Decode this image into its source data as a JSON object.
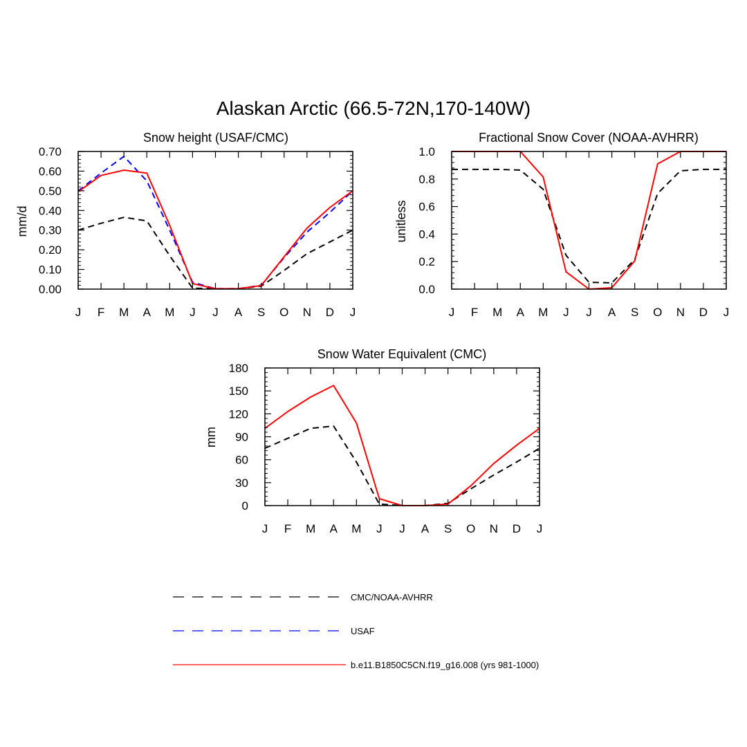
{
  "figure_title": "Alaskan Arctic (66.5-72N,170-140W)",
  "colors": {
    "obs": "#000000",
    "usaf": "#0000ff",
    "model": "#ff0000"
  },
  "legend": [
    {
      "key": "obs",
      "label": "CMC/NOAA-AVHRR",
      "style": "dashed",
      "color": "#000000"
    },
    {
      "key": "usaf",
      "label": "USAF",
      "style": "dashed",
      "color": "#0000ff"
    },
    {
      "key": "model",
      "label": "b.e11.B1850C5CN.f19_g16.008 (yrs 981-1000)",
      "style": "solid",
      "color": "#ff0000"
    }
  ],
  "chart_data": [
    {
      "id": "snow-height",
      "type": "line",
      "title": "Snow height (USAF/CMC)",
      "xlabel": "",
      "ylabel": "mm/d",
      "categories": [
        "J",
        "F",
        "M",
        "A",
        "M",
        "J",
        "J",
        "A",
        "S",
        "O",
        "N",
        "D",
        "J"
      ],
      "ylim": [
        0,
        0.7
      ],
      "yticks": [
        "0.00",
        "0.10",
        "0.20",
        "0.30",
        "0.40",
        "0.50",
        "0.60",
        "0.70"
      ],
      "series": [
        {
          "name": "CMC/NOAA-AVHRR",
          "key": "obs",
          "values": [
            0.3,
            0.335,
            0.365,
            0.347,
            0.17,
            0.005,
            0.002,
            0.002,
            0.015,
            0.095,
            0.18,
            0.24,
            0.3
          ]
        },
        {
          "name": "USAF",
          "key": "usaf",
          "values": [
            0.5,
            0.59,
            0.675,
            0.55,
            0.3,
            0.035,
            0.002,
            0.002,
            0.02,
            0.16,
            0.29,
            0.39,
            0.5
          ]
        },
        {
          "name": "b.e11.B1850C5CN.f19_g16.008 (yrs 981-1000)",
          "key": "model",
          "values": [
            0.495,
            0.578,
            0.605,
            0.59,
            0.325,
            0.028,
            0.002,
            0.002,
            0.018,
            0.165,
            0.31,
            0.415,
            0.5
          ]
        }
      ]
    },
    {
      "id": "snow-cover",
      "type": "line",
      "title": "Fractional Snow Cover (NOAA-AVHRR)",
      "xlabel": "",
      "ylabel": "unitless",
      "categories": [
        "J",
        "F",
        "M",
        "A",
        "M",
        "J",
        "J",
        "A",
        "S",
        "O",
        "N",
        "D",
        "J"
      ],
      "ylim": [
        0,
        1.0
      ],
      "yticks": [
        "0.0",
        "0.2",
        "0.4",
        "0.6",
        "0.8",
        "1.0"
      ],
      "series": [
        {
          "name": "CMC/NOAA-AVHRR",
          "key": "obs",
          "values": [
            0.87,
            0.87,
            0.87,
            0.865,
            0.725,
            0.245,
            0.05,
            0.045,
            0.215,
            0.695,
            0.86,
            0.87,
            0.87
          ]
        },
        {
          "name": "b.e11.B1850C5CN.f19_g16.008 (yrs 981-1000)",
          "key": "model",
          "values": [
            1.0,
            1.0,
            1.0,
            1.0,
            0.815,
            0.125,
            0.0,
            0.01,
            0.205,
            0.91,
            1.0,
            1.0,
            1.0
          ]
        }
      ]
    },
    {
      "id": "swe",
      "type": "line",
      "title": "Snow Water Equivalent (CMC)",
      "xlabel": "",
      "ylabel": "mm",
      "categories": [
        "J",
        "F",
        "M",
        "A",
        "M",
        "J",
        "J",
        "A",
        "S",
        "O",
        "N",
        "D",
        "J"
      ],
      "ylim": [
        0,
        180
      ],
      "yticks": [
        "0",
        "30",
        "60",
        "90",
        "120",
        "150",
        "180"
      ],
      "series": [
        {
          "name": "CMC/NOAA-AVHRR",
          "key": "obs",
          "values": [
            75,
            88,
            101,
            104,
            57,
            2,
            0,
            0,
            3,
            22,
            40,
            57,
            75
          ]
        },
        {
          "name": "b.e11.B1850C5CN.f19_g16.008 (yrs 981-1000)",
          "key": "model",
          "values": [
            101,
            123,
            142,
            157,
            108,
            9,
            0,
            0,
            2,
            26,
            55,
            79,
            101
          ]
        }
      ]
    }
  ]
}
